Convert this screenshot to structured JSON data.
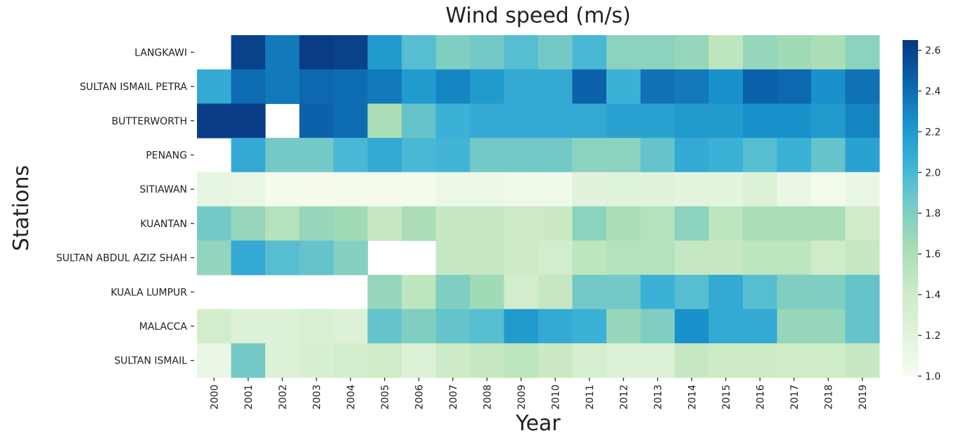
{
  "chart_data": {
    "type": "heatmap",
    "title": "Wind speed (m/s)",
    "x_label": "Year",
    "y_label": "Stations",
    "colormap": "GnBu",
    "x": [
      "2000",
      "2001",
      "2002",
      "2003",
      "2004",
      "2005",
      "2006",
      "2007",
      "2008",
      "2009",
      "2010",
      "2011",
      "2012",
      "2013",
      "2014",
      "2015",
      "2016",
      "2017",
      "2018",
      "2019"
    ],
    "y": [
      "LANGKAWI",
      "SULTAN ISMAIL PETRA",
      "BUTTERWORTH",
      "PENANG",
      "SITIAWAN",
      "KUANTAN",
      "SULTAN ABDUL AZIZ SHAH",
      "KUALA LUMPUR",
      "MALACCA",
      "SULTAN ISMAIL"
    ],
    "values": [
      [
        null,
        2.6,
        2.35,
        2.62,
        2.6,
        2.2,
        1.95,
        1.8,
        1.85,
        1.95,
        1.85,
        2.0,
        1.75,
        1.75,
        1.7,
        1.5,
        1.7,
        1.65,
        1.6,
        1.75
      ],
      [
        2.1,
        2.4,
        2.35,
        2.42,
        2.4,
        2.35,
        2.2,
        2.3,
        2.2,
        2.1,
        2.1,
        2.45,
        2.05,
        2.38,
        2.35,
        2.25,
        2.45,
        2.42,
        2.25,
        2.38
      ],
      [
        2.62,
        2.62,
        null,
        2.45,
        2.4,
        1.6,
        1.9,
        2.05,
        2.1,
        2.1,
        2.1,
        2.1,
        2.15,
        2.15,
        2.2,
        2.2,
        2.25,
        2.25,
        2.2,
        2.3
      ],
      [
        null,
        2.1,
        1.85,
        1.85,
        2.0,
        2.1,
        2.0,
        2.02,
        1.85,
        1.85,
        1.85,
        1.75,
        1.75,
        1.9,
        2.1,
        2.05,
        1.95,
        2.05,
        1.9,
        2.15
      ],
      [
        1.15,
        1.12,
        1.03,
        1.03,
        1.03,
        1.03,
        1.03,
        1.1,
        1.1,
        1.07,
        1.07,
        1.2,
        1.22,
        1.2,
        1.17,
        1.17,
        1.25,
        1.12,
        1.05,
        1.12
      ],
      [
        1.85,
        1.7,
        1.55,
        1.7,
        1.65,
        1.45,
        1.6,
        1.45,
        1.45,
        1.4,
        1.42,
        1.75,
        1.6,
        1.55,
        1.75,
        1.5,
        1.6,
        1.6,
        1.6,
        1.38
      ],
      [
        1.72,
        2.1,
        1.95,
        1.9,
        1.78,
        null,
        null,
        1.45,
        1.45,
        1.4,
        1.35,
        1.5,
        1.55,
        1.55,
        1.45,
        1.45,
        1.5,
        1.5,
        1.38,
        1.45
      ],
      [
        null,
        null,
        null,
        null,
        null,
        1.7,
        1.5,
        1.8,
        1.65,
        1.35,
        1.45,
        1.85,
        1.85,
        2.05,
        1.95,
        2.1,
        1.95,
        1.8,
        1.8,
        1.9
      ],
      [
        1.35,
        1.25,
        1.25,
        1.28,
        1.25,
        1.9,
        1.8,
        1.9,
        1.95,
        2.2,
        2.1,
        2.05,
        1.7,
        1.8,
        2.25,
        2.1,
        2.1,
        1.7,
        1.7,
        1.9
      ],
      [
        1.12,
        1.85,
        1.25,
        1.3,
        1.35,
        1.38,
        1.25,
        1.4,
        1.45,
        1.5,
        1.42,
        1.32,
        1.25,
        1.25,
        1.45,
        1.4,
        1.4,
        1.38,
        1.38,
        1.45
      ]
    ],
    "zlim": [
      1.0,
      2.65
    ],
    "zticks": [
      {
        "value": 1,
        "label": "1.0"
      },
      1.2,
      1.4,
      1.6,
      1.8,
      {
        "value": 2,
        "label": "2.0"
      },
      2.2,
      2.4,
      2.6
    ]
  }
}
